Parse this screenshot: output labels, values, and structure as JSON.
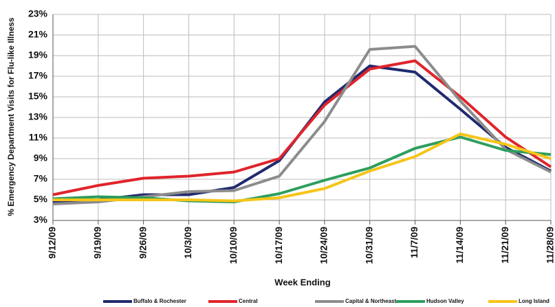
{
  "chart_data": {
    "type": "line",
    "y_label": "% Emergency  Department Visits for Flu-like Illness",
    "x_label": "Week Ending",
    "categories": [
      "9/12/09",
      "9/19/09",
      "9/26/09",
      "10/3/09",
      "10/10/09",
      "10/17/09",
      "10/24/09",
      "10/31/09",
      "11/7/09",
      "11/14/09",
      "11/21/09",
      "11/28/09"
    ],
    "series": [
      {
        "name": "Buffalo & Rochester",
        "color": "#1f2a6e",
        "values": [
          4.8,
          5.0,
          5.5,
          5.5,
          6.2,
          8.8,
          14.5,
          18.0,
          17.4,
          13.8,
          10.1,
          7.8
        ]
      },
      {
        "name": "Central",
        "color": "#e0242b",
        "values": [
          5.5,
          6.4,
          7.1,
          7.3,
          7.7,
          9.0,
          14.2,
          17.7,
          18.5,
          15.0,
          11.1,
          8.2
        ]
      },
      {
        "name": "Capital & Northeast",
        "color": "#8c8c8c",
        "values": [
          4.6,
          4.8,
          5.3,
          5.8,
          5.9,
          7.3,
          12.6,
          19.6,
          19.9,
          14.6,
          9.9,
          7.7
        ]
      },
      {
        "name": "Hudson Valley",
        "color": "#2e9e5e",
        "values": [
          5.1,
          5.3,
          5.2,
          4.9,
          4.8,
          5.6,
          6.9,
          8.1,
          10.0,
          11.1,
          9.8,
          9.4
        ]
      },
      {
        "name": "Long Island",
        "color": "#f5c518",
        "values": [
          5.0,
          5.0,
          5.0,
          5.0,
          4.9,
          5.2,
          6.1,
          7.8,
          9.2,
          11.4,
          10.4,
          9.0
        ]
      }
    ],
    "ylim": [
      3,
      23
    ],
    "yticks": [
      {
        "value": 3,
        "label": "3%"
      },
      {
        "value": 5,
        "label": "5%"
      },
      {
        "value": 7,
        "label": "7%"
      },
      {
        "value": 9,
        "label": "9%"
      },
      {
        "value": 11,
        "label": "11%"
      },
      {
        "value": 13,
        "label": "13%"
      },
      {
        "value": 15,
        "label": "15%"
      },
      {
        "value": 17,
        "label": "17%"
      },
      {
        "value": 19,
        "label": "19%"
      },
      {
        "value": 21,
        "label": "21%"
      },
      {
        "value": 23,
        "label": "23%"
      }
    ],
    "grid": true,
    "legend": "bottom"
  }
}
